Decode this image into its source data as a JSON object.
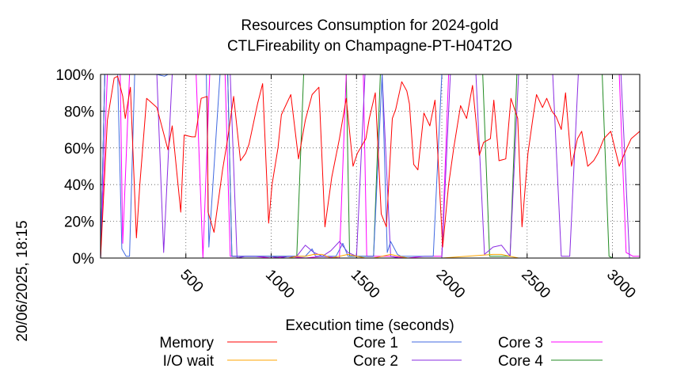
{
  "chart_data": {
    "type": "line",
    "title": [
      "Resources Consumption for 2024-gold",
      "CTLFireability on Champagne-PT-H04T2O"
    ],
    "xlabel": "Execution time (seconds)",
    "ylabel": "",
    "timestamp": "20/06/2025, 18:15",
    "xlim": [
      0,
      3160
    ],
    "ylim": [
      0,
      100
    ],
    "xticks": [
      500,
      1000,
      1500,
      2000,
      2500,
      3000
    ],
    "xtick_labels": [
      "500",
      "1000",
      "1500",
      "2000",
      "2500",
      "3000"
    ],
    "yticks": [
      0,
      20,
      40,
      60,
      80,
      100
    ],
    "ytick_labels": [
      "0%",
      "20%",
      "40%",
      "60%",
      "80%",
      "100%"
    ],
    "grid": true,
    "legend_position": "bottom",
    "series": [
      {
        "name": "Memory",
        "color": "#ff0000",
        "x": [
          0,
          40,
          80,
          100,
          130,
          145,
          175,
          210,
          230,
          270,
          330,
          395,
          420,
          470,
          490,
          535,
          555,
          590,
          625,
          630,
          665,
          715,
          745,
          780,
          820,
          850,
          870,
          920,
          950,
          985,
          1005,
          1040,
          1060,
          1115,
          1160,
          1200,
          1240,
          1280,
          1315,
          1355,
          1400,
          1440,
          1480,
          1505,
          1555,
          1575,
          1610,
          1645,
          1675,
          1710,
          1730,
          1765,
          1795,
          1810,
          1835,
          1860,
          1895,
          1930,
          1960,
          2005,
          2040,
          2070,
          2110,
          2145,
          2180,
          2220,
          2245,
          2285,
          2305,
          2335,
          2375,
          2405,
          2445,
          2470,
          2505,
          2535,
          2555,
          2590,
          2615,
          2645,
          2670,
          2700,
          2725,
          2760,
          2795,
          2820,
          2855,
          2890,
          2915,
          2950,
          2990,
          3040,
          3080,
          3110,
          3160
        ],
        "values": [
          0,
          75,
          98,
          99,
          88,
          76,
          93,
          11,
          40,
          87,
          82,
          59,
          72,
          25,
          67,
          66,
          66,
          87,
          88,
          25,
          14,
          48,
          65,
          88,
          53,
          57,
          62,
          84,
          95,
          19,
          40,
          60,
          78,
          89,
          54,
          75,
          89,
          93,
          17,
          44,
          65,
          87,
          50,
          57,
          65,
          76,
          90,
          24,
          17,
          76,
          81,
          96,
          91,
          84,
          51,
          48,
          79,
          72,
          86,
          6,
          40,
          60,
          83,
          76,
          94,
          56,
          63,
          65,
          86,
          53,
          54,
          87,
          76,
          17,
          57,
          77,
          89,
          82,
          87,
          80,
          77,
          70,
          90,
          50,
          65,
          69,
          50,
          53,
          57,
          65,
          69,
          50,
          59,
          65,
          69
        ]
      },
      {
        "name": "I/O wait",
        "color": "#ffa500",
        "x": [
          0,
          1000,
          1100,
          1150,
          1200,
          1250,
          1300,
          1350,
          1400,
          1450,
          1500,
          1550,
          1600,
          1650,
          1700,
          1750,
          1800,
          2000,
          2300,
          2350,
          2400,
          2450,
          3160
        ],
        "values": [
          0,
          0,
          0,
          1,
          1,
          2,
          2,
          0,
          1,
          2,
          1,
          0,
          0,
          1,
          2,
          1,
          0,
          0,
          2,
          2,
          1,
          0,
          0
        ]
      },
      {
        "name": "Core 1",
        "color": "#4169e1",
        "x": [
          0,
          25,
          45,
          100,
          125,
          150,
          170,
          200,
          230,
          260,
          290,
          330,
          375,
          395,
          430,
          470,
          520,
          560,
          620,
          635,
          700,
          745,
          770,
          800,
          900,
          1000,
          1100,
          1200,
          1240,
          1260,
          1300,
          1380,
          1420,
          1450,
          1500,
          1550,
          1600,
          1650,
          1680,
          1700,
          1740,
          1760,
          1800,
          1850,
          1900,
          1950,
          2000,
          2100,
          2150,
          2200,
          2250,
          2300,
          2400,
          2450,
          2480,
          2500,
          2560,
          2600,
          2650,
          2700,
          2760,
          2800,
          2900,
          3000,
          3100,
          3160
        ],
        "values": [
          0,
          100,
          100,
          100,
          5,
          1,
          1,
          100,
          100,
          100,
          100,
          100,
          99,
          100,
          100,
          100,
          100,
          100,
          100,
          6,
          100,
          100,
          1,
          1,
          1,
          1,
          1,
          1,
          5,
          1,
          1,
          1,
          8,
          1,
          1,
          1,
          1,
          100,
          3,
          9,
          2,
          1,
          1,
          1,
          1,
          1,
          100,
          100,
          100,
          100,
          100,
          100,
          100,
          100,
          100,
          100,
          100,
          100,
          100,
          100,
          100,
          100,
          100,
          100,
          100,
          100
        ]
      },
      {
        "name": "Core 2",
        "color": "#8a2be2",
        "x": [
          0,
          25,
          60,
          90,
          120,
          160,
          200,
          240,
          290,
          330,
          370,
          420,
          460,
          500,
          560,
          600,
          640,
          680,
          720,
          760,
          800,
          850,
          900,
          950,
          1000,
          1050,
          1100,
          1150,
          1200,
          1250,
          1300,
          1350,
          1400,
          1450,
          1500,
          1550,
          1600,
          1650,
          1700,
          1750,
          1800,
          1850,
          1900,
          1950,
          2000,
          2050,
          2100,
          2150,
          2200,
          2250,
          2300,
          2350,
          2400,
          2450,
          2500,
          2550,
          2600,
          2650,
          2700,
          2750,
          2800,
          2850,
          2900,
          2950,
          3000,
          3050,
          3100,
          3160
        ],
        "values": [
          0,
          100,
          100,
          100,
          100,
          100,
          100,
          100,
          100,
          100,
          3,
          100,
          100,
          100,
          100,
          100,
          100,
          100,
          100,
          100,
          0,
          1,
          1,
          1,
          1,
          0,
          1,
          1,
          7,
          3,
          1,
          4,
          9,
          3,
          1,
          100,
          100,
          100,
          1,
          0,
          0,
          0,
          0,
          0,
          0,
          100,
          100,
          100,
          100,
          2,
          6,
          7,
          1,
          100,
          100,
          100,
          100,
          100,
          1,
          1,
          100,
          100,
          100,
          100,
          100,
          100,
          0,
          0
        ]
      },
      {
        "name": "Core 3",
        "color": "#ff00ff",
        "x": [
          0,
          40,
          70,
          100,
          115,
          130,
          170,
          195,
          230,
          260,
          300,
          345,
          370,
          390,
          420,
          460,
          480,
          510,
          540,
          560,
          600,
          640,
          660,
          700,
          730,
          760,
          800,
          900,
          1000,
          1100,
          1200,
          1300,
          1400,
          1440,
          1460,
          1500,
          1540,
          1560,
          1600,
          1700,
          1800,
          1900,
          2000,
          2040,
          2080,
          2100,
          2140,
          2200,
          2240,
          2280,
          2330,
          2380,
          2420,
          2460,
          2500,
          2540,
          2600,
          2640,
          2680,
          2720,
          2760,
          2800,
          2840,
          2880,
          2920,
          2960,
          3000,
          3040,
          3080,
          3120,
          3160
        ],
        "values": [
          0,
          100,
          100,
          100,
          100,
          8,
          100,
          100,
          100,
          100,
          100,
          100,
          100,
          100,
          100,
          100,
          100,
          100,
          100,
          100,
          0,
          100,
          100,
          100,
          100,
          1,
          1,
          1,
          0,
          1,
          0,
          1,
          0,
          100,
          100,
          100,
          100,
          1,
          1,
          1,
          0,
          1,
          1,
          100,
          100,
          100,
          100,
          100,
          100,
          100,
          100,
          100,
          100,
          100,
          100,
          100,
          100,
          100,
          100,
          100,
          100,
          100,
          100,
          100,
          100,
          100,
          100,
          100,
          3,
          1,
          1
        ]
      },
      {
        "name": "Core 4",
        "color": "#228b22",
        "x": [
          0,
          25,
          60,
          90,
          120,
          160,
          200,
          240,
          280,
          330,
          370,
          400,
          420,
          460,
          500,
          530,
          560,
          600,
          640,
          680,
          700,
          745,
          770,
          800,
          900,
          1000,
          1100,
          1150,
          1190,
          1250,
          1300,
          1350,
          1400,
          1440,
          1460,
          1500,
          1540,
          1600,
          1640,
          1660,
          1700,
          1800,
          1900,
          2000,
          2040,
          2060,
          2100,
          2150,
          2200,
          2240,
          2280,
          2300,
          2350,
          2400,
          2440,
          2460,
          2500,
          2560,
          2600,
          2650,
          2700,
          2760,
          2800,
          2850,
          2900,
          2940,
          2980,
          3000,
          3100,
          3160
        ],
        "values": [
          0,
          100,
          100,
          100,
          100,
          100,
          100,
          100,
          100,
          100,
          100,
          100,
          100,
          100,
          100,
          100,
          100,
          100,
          100,
          100,
          100,
          100,
          1,
          1,
          1,
          1,
          1,
          1,
          100,
          100,
          100,
          100,
          100,
          100,
          1,
          1,
          1,
          1,
          100,
          100,
          100,
          100,
          100,
          100,
          100,
          100,
          100,
          100,
          100,
          100,
          1,
          1,
          1,
          1,
          100,
          100,
          100,
          100,
          100,
          100,
          100,
          100,
          100,
          100,
          100,
          100,
          1,
          0,
          0,
          0
        ]
      }
    ]
  }
}
